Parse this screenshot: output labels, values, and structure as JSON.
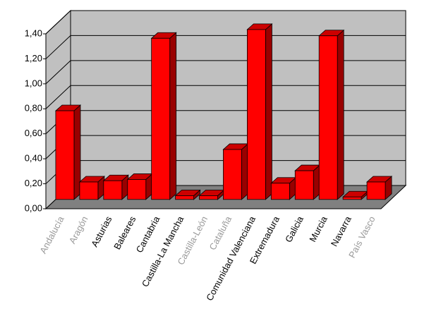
{
  "chart_data": {
    "type": "bar3d",
    "categories": [
      "Andalucía",
      "Aragón",
      "Asturias",
      "Baleares",
      "Cantabria",
      "Castilla-La Mancha",
      "Castilla-León",
      "Cataluña",
      "Comunidad Valenciana",
      "Extremadura",
      "Galicia",
      "Murcia",
      "Navarra",
      "País Vasco"
    ],
    "category_label_colors": [
      "#999999",
      "#999999",
      "#000000",
      "#000000",
      "#000000",
      "#000000",
      "#999999",
      "#999999",
      "#000000",
      "#000000",
      "#000000",
      "#000000",
      "#000000",
      "#999999"
    ],
    "values": [
      0.71,
      0.14,
      0.15,
      0.16,
      1.29,
      0.03,
      0.03,
      0.4,
      1.36,
      0.13,
      0.23,
      1.31,
      0.02,
      0.14
    ],
    "color": "#ff0000",
    "ylim": [
      0,
      1.4
    ],
    "yticks": [
      {
        "value": 0,
        "label": "0,00"
      },
      {
        "value": 0.2,
        "label": "0,20"
      },
      {
        "value": 0.4,
        "label": "0,40"
      },
      {
        "value": 0.6,
        "label": "0,60"
      },
      {
        "value": 0.8,
        "label": "0,80"
      },
      {
        "value": 1.0,
        "label": "1,00"
      },
      {
        "value": 1.2,
        "label": "1,20"
      },
      {
        "value": 1.4,
        "label": "1,40"
      }
    ],
    "grid": true
  }
}
